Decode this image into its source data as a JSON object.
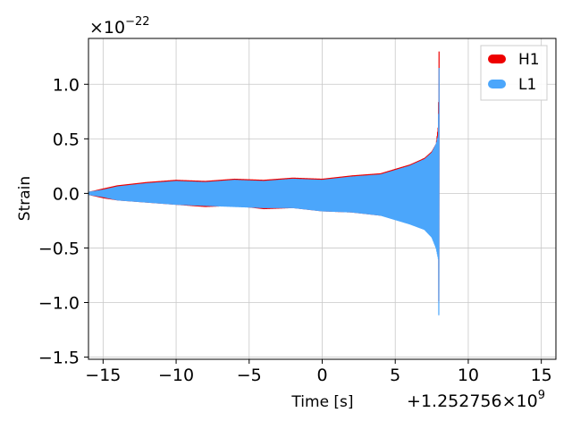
{
  "chart_data": {
    "type": "line",
    "xlabel": "Time [s]",
    "ylabel": "Strain",
    "x_offset_label": "+1.252756×10",
    "x_offset_exponent": "9",
    "y_multiplier_label": "×10",
    "y_multiplier_exponent": "−22",
    "xlim": [
      -16,
      16
    ],
    "ylim": [
      -1.52,
      1.42
    ],
    "xticks": [
      -15,
      -10,
      -5,
      0,
      5,
      10,
      15
    ],
    "xtick_labels": [
      "−15",
      "−10",
      "−5",
      "0",
      "5",
      "10",
      "15"
    ],
    "yticks": [
      -1.5,
      -1.0,
      -0.5,
      0.0,
      0.5,
      1.0
    ],
    "ytick_labels": [
      "−1.5",
      "−1.0",
      "−0.5",
      "0.0",
      "0.5",
      "1.0"
    ],
    "grid": true,
    "legend_position": "top-right",
    "series": [
      {
        "name": "H1",
        "color": "#ee0000",
        "x": [
          -16,
          -15,
          -14,
          -12,
          -10,
          -8,
          -6,
          -4,
          -2,
          0,
          2,
          4,
          5,
          6,
          7,
          7.5,
          7.8,
          7.95,
          8.0
        ],
        "upper": [
          0.01,
          0.04,
          0.07,
          0.1,
          0.12,
          0.11,
          0.13,
          0.12,
          0.14,
          0.13,
          0.16,
          0.18,
          0.22,
          0.26,
          0.32,
          0.38,
          0.45,
          0.62,
          1.3
        ],
        "lower": [
          -0.01,
          -0.04,
          -0.06,
          -0.08,
          -0.1,
          -0.12,
          -0.11,
          -0.14,
          -0.13,
          -0.16,
          -0.17,
          -0.2,
          -0.22,
          -0.26,
          -0.32,
          -0.38,
          -0.45,
          -0.58,
          -1.2
        ]
      },
      {
        "name": "L1",
        "color": "#4ba6fb",
        "x": [
          -16,
          -15,
          -14,
          -12,
          -10,
          -8,
          -6,
          -4,
          -2,
          0,
          2,
          4,
          5,
          6,
          7,
          7.5,
          7.8,
          7.95,
          8.0
        ],
        "upper": [
          0.01,
          0.03,
          0.06,
          0.09,
          0.11,
          0.1,
          0.12,
          0.11,
          0.13,
          0.12,
          0.15,
          0.17,
          0.21,
          0.25,
          0.31,
          0.37,
          0.45,
          0.53,
          1.15
        ],
        "lower": [
          -0.01,
          -0.03,
          -0.06,
          -0.08,
          -0.1,
          -0.11,
          -0.12,
          -0.13,
          -0.13,
          -0.16,
          -0.17,
          -0.2,
          -0.24,
          -0.28,
          -0.33,
          -0.4,
          -0.5,
          -0.6,
          -1.38
        ]
      }
    ]
  }
}
